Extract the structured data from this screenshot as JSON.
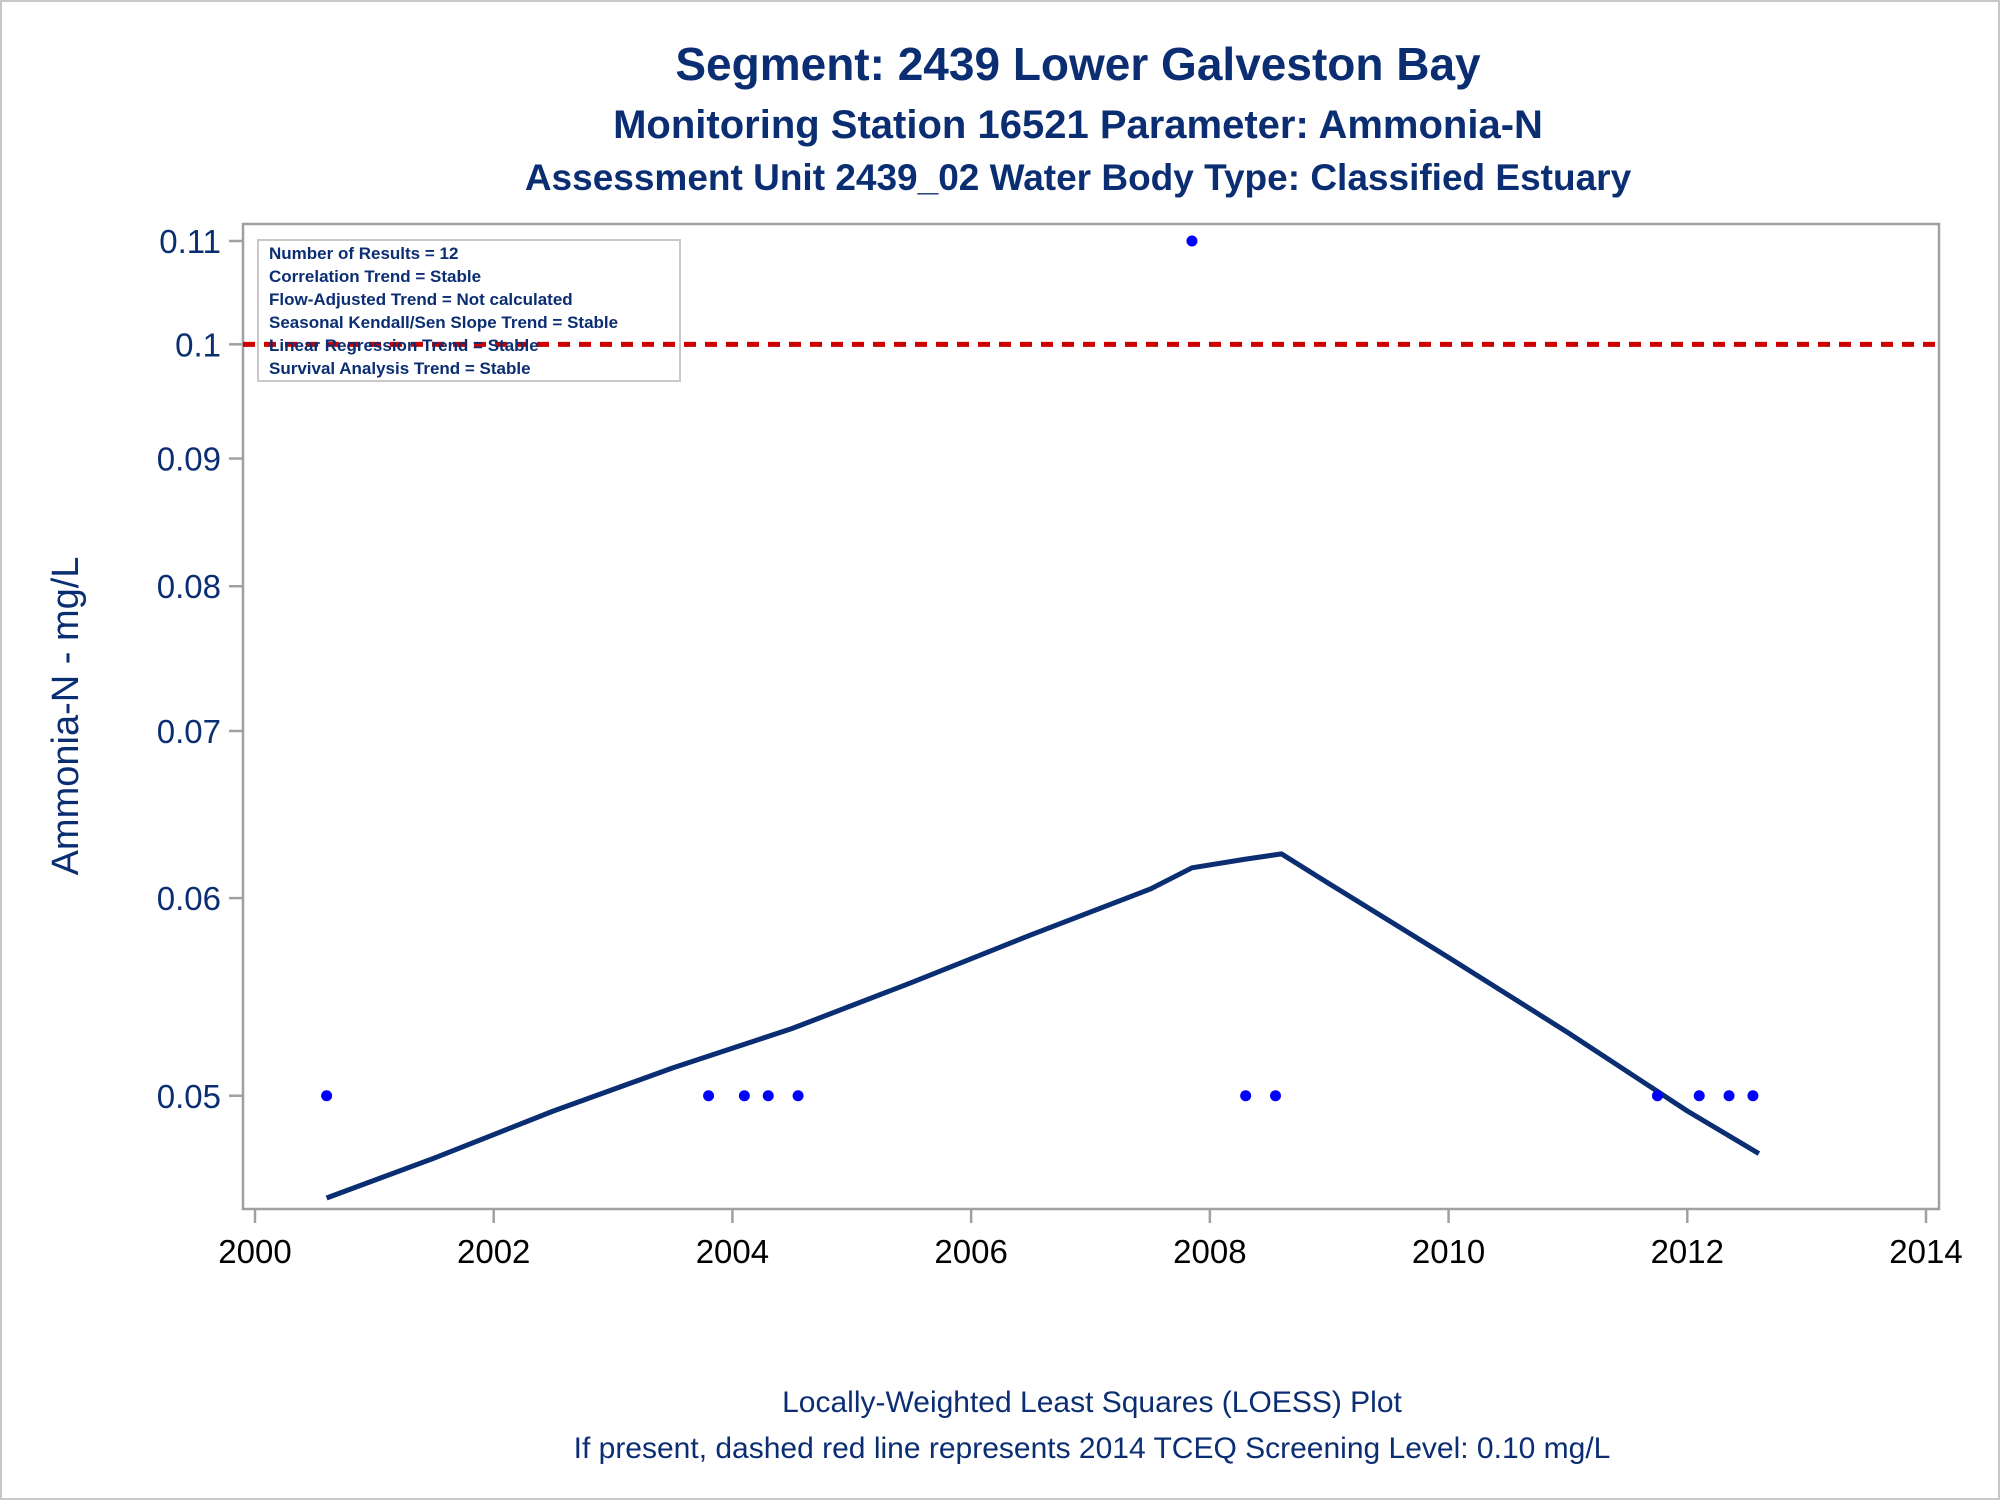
{
  "chart_data": {
    "type": "scatter",
    "title": "Segment: 2439  Lower Galveston Bay",
    "subtitle": "Monitoring Station 16521 Parameter: Ammonia-N",
    "subtitle2": "Assessment Unit 2439_02   Water Body Type: Classified Estuary",
    "ylabel": "Ammonia-N - mg/L",
    "y_scale": "log",
    "xlim": [
      2000,
      2014
    ],
    "ylim": [
      0.0455,
      0.11
    ],
    "x_ticks": [
      "2000",
      "2002",
      "2004",
      "2006",
      "2008",
      "2010",
      "2012",
      "2014"
    ],
    "y_ticks": [
      "0.05",
      "0.06",
      "0.07",
      "0.08",
      "0.09",
      "0.1",
      "0.11"
    ],
    "grid": false,
    "points": {
      "color": "#0000ff",
      "x": [
        2000.6,
        2003.8,
        2004.1,
        2004.3,
        2004.55,
        2007.85,
        2008.3,
        2008.55,
        2011.75,
        2012.1,
        2012.35,
        2012.55
      ],
      "y": [
        0.05,
        0.05,
        0.05,
        0.05,
        0.05,
        0.11,
        0.05,
        0.05,
        0.05,
        0.05,
        0.05,
        0.05
      ]
    },
    "loess": {
      "color": "#0b2e73",
      "x": [
        2000.6,
        2001.5,
        2002.5,
        2003.5,
        2004.5,
        2005.5,
        2006.5,
        2007.5,
        2007.85,
        2008.3,
        2008.6,
        2009.0,
        2010.0,
        2011.0,
        2012.0,
        2012.6
      ],
      "y": [
        0.0455,
        0.0472,
        0.0493,
        0.0513,
        0.0532,
        0.0555,
        0.058,
        0.0605,
        0.0617,
        0.0622,
        0.0625,
        0.0608,
        0.0568,
        0.053,
        0.0493,
        0.0474
      ]
    },
    "screening_level": {
      "value": 0.1,
      "color": "#cc0000"
    },
    "stats_box": [
      "Number of Results = 12",
      "Correlation Trend = Stable",
      "Flow-Adjusted Trend = Not calculated",
      "Seasonal Kendall/Sen Slope Trend = Stable",
      "Linear Regression Trend = Stable",
      "Survival Analysis Trend = Stable"
    ],
    "footnote1": "Locally-Weighted Least Squares (LOESS) Plot",
    "footnote2": "If present, dashed red line represents 2014 TCEQ Screening Level: 0.10 mg/L"
  }
}
